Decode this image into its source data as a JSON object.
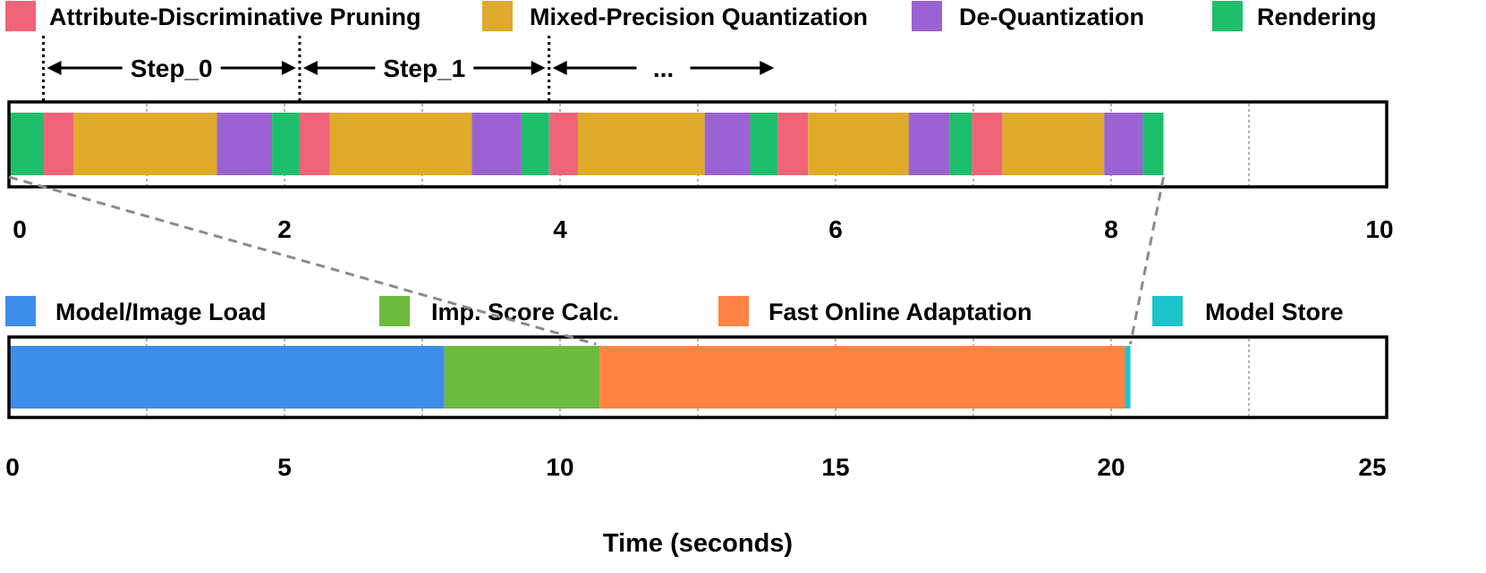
{
  "chart_data": [
    {
      "type": "timeline",
      "name": "rendering-steps",
      "legend": [
        {
          "key": "pruning",
          "label": "Attribute-Discriminative Pruning",
          "color": "#F0647A"
        },
        {
          "key": "quant",
          "label": "Mixed-Precision Quantization",
          "color": "#DFAA2A"
        },
        {
          "key": "dequant",
          "label": "De-Quantization",
          "color": "#9A62D3"
        },
        {
          "key": "render",
          "label": "Rendering",
          "color": "#1DBF6A"
        }
      ],
      "xlim": [
        0,
        10
      ],
      "xticks": [
        "0",
        "2",
        "4",
        "6",
        "8",
        "10"
      ],
      "gridlines": [
        1,
        2,
        3,
        4,
        5,
        6,
        7,
        8,
        9
      ],
      "segments": [
        {
          "cat": "render",
          "start": 0.0,
          "end": 0.25
        },
        {
          "cat": "pruning",
          "start": 0.25,
          "end": 0.47
        },
        {
          "cat": "quant",
          "start": 0.47,
          "end": 1.51
        },
        {
          "cat": "dequant",
          "start": 1.51,
          "end": 1.91
        },
        {
          "cat": "render",
          "start": 1.91,
          "end": 2.11
        },
        {
          "cat": "pruning",
          "start": 2.11,
          "end": 2.33
        },
        {
          "cat": "quant",
          "start": 2.33,
          "end": 3.36
        },
        {
          "cat": "dequant",
          "start": 3.36,
          "end": 3.72
        },
        {
          "cat": "render",
          "start": 3.72,
          "end": 3.92
        },
        {
          "cat": "pruning",
          "start": 3.92,
          "end": 4.13
        },
        {
          "cat": "quant",
          "start": 4.13,
          "end": 5.05
        },
        {
          "cat": "dequant",
          "start": 5.05,
          "end": 5.38
        },
        {
          "cat": "render",
          "start": 5.38,
          "end": 5.58
        },
        {
          "cat": "pruning",
          "start": 5.58,
          "end": 5.8
        },
        {
          "cat": "quant",
          "start": 5.8,
          "end": 6.53
        },
        {
          "cat": "dequant",
          "start": 6.53,
          "end": 6.83
        },
        {
          "cat": "render",
          "start": 6.83,
          "end": 6.99
        },
        {
          "cat": "pruning",
          "start": 6.99,
          "end": 7.21
        },
        {
          "cat": "quant",
          "start": 7.21,
          "end": 7.95
        },
        {
          "cat": "dequant",
          "start": 7.95,
          "end": 8.23
        },
        {
          "cat": "render",
          "start": 8.23,
          "end": 8.38
        }
      ],
      "step_markers": [
        0.25,
        2.11,
        3.92
      ],
      "steps": [
        {
          "label": "Step_0",
          "start": 0.25,
          "end": 2.11
        },
        {
          "label": "Step_1",
          "start": 2.11,
          "end": 3.92
        },
        {
          "label": "...",
          "start": 3.92,
          "end": 5.58
        }
      ]
    },
    {
      "type": "timeline",
      "name": "adaptation-breakdown",
      "legend": [
        {
          "key": "load",
          "label": "Model/Image Load",
          "color": "#3D8EEA"
        },
        {
          "key": "score",
          "label": "Imp. Score Calc.",
          "color": "#6CBB3C"
        },
        {
          "key": "adapt",
          "label": "Fast Online Adaptation",
          "color": "#FF8444"
        },
        {
          "key": "store",
          "label": "Model Store",
          "color": "#1CC3CB"
        }
      ],
      "xlim": [
        0,
        25
      ],
      "xticks": [
        "0",
        "5",
        "10",
        "15",
        "20",
        "25"
      ],
      "gridlines": [
        2.5,
        5,
        7.5,
        10,
        12.5,
        15,
        17.5,
        20,
        22.5
      ],
      "segments": [
        {
          "cat": "load",
          "start": 0.0,
          "end": 7.9
        },
        {
          "cat": "score",
          "start": 7.9,
          "end": 10.72
        },
        {
          "cat": "adapt",
          "start": 10.72,
          "end": 20.25
        },
        {
          "cat": "store",
          "start": 20.25,
          "end": 20.35
        }
      ]
    }
  ],
  "zoom": {
    "from_start": 0.0,
    "from_end": 8.38,
    "to_start": 0.0,
    "to_end": 20.35
  },
  "xlabel": "Time (seconds)"
}
